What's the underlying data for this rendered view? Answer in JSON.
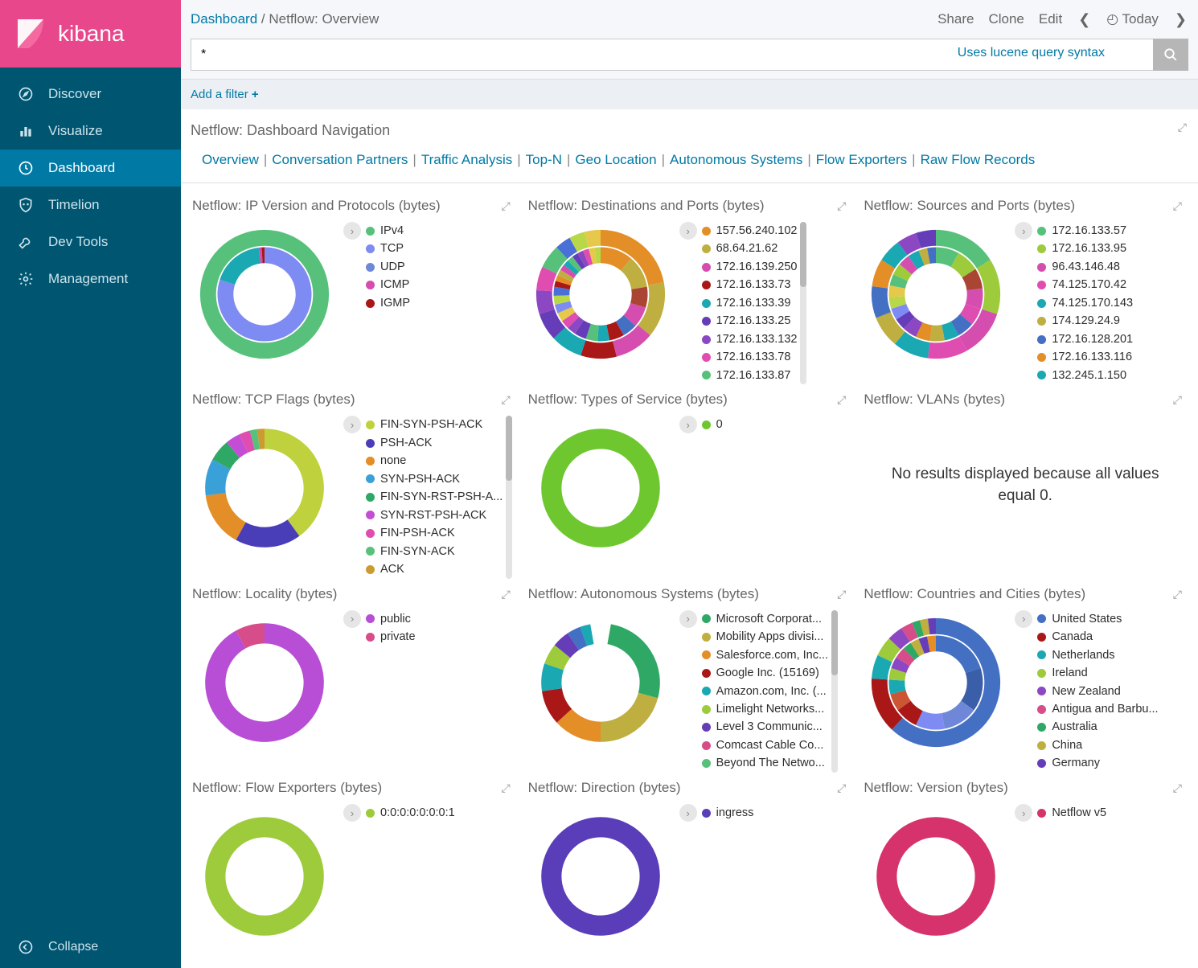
{
  "app_name": "kibana",
  "sidebar": {
    "items": [
      {
        "label": "Discover",
        "icon": "compass"
      },
      {
        "label": "Visualize",
        "icon": "bar-chart"
      },
      {
        "label": "Dashboard",
        "icon": "clock",
        "active": true
      },
      {
        "label": "Timelion",
        "icon": "shield"
      },
      {
        "label": "Dev Tools",
        "icon": "wrench"
      },
      {
        "label": "Management",
        "icon": "gear"
      }
    ],
    "collapse_label": "Collapse"
  },
  "topbar": {
    "breadcrumb_root": "Dashboard",
    "breadcrumb_current": "Netflow: Overview",
    "actions": {
      "share": "Share",
      "clone": "Clone",
      "edit": "Edit",
      "time": "Today"
    },
    "search_value": "*",
    "search_hint": "Uses lucene query syntax",
    "add_filter": "Add a filter"
  },
  "nav_panel": {
    "title": "Netflow: Dashboard Navigation",
    "links": [
      "Overview",
      "Conversation Partners",
      "Traffic Analysis",
      "Top-N",
      "Geo Location",
      "Autonomous Systems",
      "Flow Exporters",
      "Raw Flow Records"
    ]
  },
  "panels": {
    "ip_version": {
      "title": "Netflow: IP Version and Protocols (bytes)",
      "type": "donut-2ring",
      "legend": [
        {
          "label": "IPv4",
          "color": "#57c17b"
        },
        {
          "label": "TCP",
          "color": "#7d8bf2"
        },
        {
          "label": "UDP",
          "color": "#6f87d8"
        },
        {
          "label": "ICMP",
          "color": "#d64db0"
        },
        {
          "label": "IGMP",
          "color": "#aa1717"
        }
      ],
      "outer": [
        {
          "value": 100,
          "color": "#57c17b"
        }
      ],
      "inner": [
        {
          "value": 80,
          "color": "#7d8bf2"
        },
        {
          "value": 18,
          "color": "#1aa8b3"
        },
        {
          "value": 1,
          "color": "#d64db0"
        },
        {
          "value": 1,
          "color": "#aa1717"
        }
      ]
    },
    "dest_ports": {
      "title": "Netflow: Destinations and Ports (bytes)",
      "type": "donut-2ring",
      "scrollbar": true,
      "legend": [
        {
          "label": "157.56.240.102",
          "color": "#e38e27"
        },
        {
          "label": "68.64.21.62",
          "color": "#bfaf40"
        },
        {
          "label": "172.16.139.250",
          "color": "#d64db0"
        },
        {
          "label": "172.16.133.73",
          "color": "#aa1717"
        },
        {
          "label": "172.16.133.39",
          "color": "#1aa8b3"
        },
        {
          "label": "172.16.133.25",
          "color": "#663db8"
        },
        {
          "label": "172.16.133.132",
          "color": "#8c47c2"
        },
        {
          "label": "172.16.133.78",
          "color": "#e04db0"
        },
        {
          "label": "172.16.133.87",
          "color": "#57c17b"
        }
      ],
      "outer": [
        {
          "value": 22,
          "color": "#e38e27"
        },
        {
          "value": 14,
          "color": "#bfaf40"
        },
        {
          "value": 10,
          "color": "#d64db0"
        },
        {
          "value": 9,
          "color": "#aa1717"
        },
        {
          "value": 8,
          "color": "#1aa8b3"
        },
        {
          "value": 7,
          "color": "#663db8"
        },
        {
          "value": 6,
          "color": "#8c47c2"
        },
        {
          "value": 6,
          "color": "#e04db0"
        },
        {
          "value": 6,
          "color": "#57c17b"
        },
        {
          "value": 4,
          "color": "#4a6fd6"
        },
        {
          "value": 4,
          "color": "#b8d84a"
        },
        {
          "value": 4,
          "color": "#e6c84a"
        }
      ],
      "inner": [
        {
          "value": 11,
          "color": "#e38e27"
        },
        {
          "value": 11,
          "color": "#bfaf40"
        },
        {
          "value": 7,
          "color": "#aa4433"
        },
        {
          "value": 7,
          "color": "#d64db0"
        },
        {
          "value": 5,
          "color": "#4470c4"
        },
        {
          "value": 5,
          "color": "#aa1717"
        },
        {
          "value": 4,
          "color": "#1aa8b3"
        },
        {
          "value": 4,
          "color": "#57c17b"
        },
        {
          "value": 4,
          "color": "#663db8"
        },
        {
          "value": 3,
          "color": "#8c47c2"
        },
        {
          "value": 3,
          "color": "#e04db0"
        },
        {
          "value": 3,
          "color": "#e6c84a"
        },
        {
          "value": 3,
          "color": "#7d8bf2"
        },
        {
          "value": 3,
          "color": "#b8d84a"
        },
        {
          "value": 3,
          "color": "#4a6fd6"
        },
        {
          "value": 2,
          "color": "#aa1717"
        },
        {
          "value": 2,
          "color": "#e38e27"
        },
        {
          "value": 2,
          "color": "#bfaf40"
        },
        {
          "value": 2,
          "color": "#d64db0"
        },
        {
          "value": 2,
          "color": "#1aa8b3"
        },
        {
          "value": 2,
          "color": "#57c17b"
        },
        {
          "value": 2,
          "color": "#663db8"
        },
        {
          "value": 2,
          "color": "#8c47c2"
        },
        {
          "value": 2,
          "color": "#e04db0"
        },
        {
          "value": 2,
          "color": "#e6c84a"
        },
        {
          "value": 2,
          "color": "#b8d84a"
        }
      ]
    },
    "src_ports": {
      "title": "Netflow: Sources and Ports (bytes)",
      "type": "donut-2ring",
      "legend": [
        {
          "label": "172.16.133.57",
          "color": "#57c17b"
        },
        {
          "label": "172.16.133.95",
          "color": "#9dcb3c"
        },
        {
          "label": "96.43.146.48",
          "color": "#d64db0"
        },
        {
          "label": "74.125.170.42",
          "color": "#e04db0"
        },
        {
          "label": "74.125.170.143",
          "color": "#1aa8b3"
        },
        {
          "label": "174.129.24.9",
          "color": "#bfaf40"
        },
        {
          "label": "172.16.128.201",
          "color": "#4470c4"
        },
        {
          "label": "172.16.133.116",
          "color": "#e38e27"
        },
        {
          "label": "132.245.1.150",
          "color": "#1aa8b3"
        }
      ],
      "outer": [
        {
          "value": 16,
          "color": "#57c17b"
        },
        {
          "value": 14,
          "color": "#9dcb3c"
        },
        {
          "value": 12,
          "color": "#d64db0"
        },
        {
          "value": 10,
          "color": "#e04db0"
        },
        {
          "value": 9,
          "color": "#1aa8b3"
        },
        {
          "value": 8,
          "color": "#bfaf40"
        },
        {
          "value": 8,
          "color": "#4470c4"
        },
        {
          "value": 7,
          "color": "#e38e27"
        },
        {
          "value": 6,
          "color": "#1aa8b3"
        },
        {
          "value": 5,
          "color": "#8c47c2"
        },
        {
          "value": 5,
          "color": "#663db8"
        }
      ],
      "inner": [
        {
          "value": 8,
          "color": "#57c17b"
        },
        {
          "value": 8,
          "color": "#9dcb3c"
        },
        {
          "value": 7,
          "color": "#aa4433"
        },
        {
          "value": 7,
          "color": "#d64db0"
        },
        {
          "value": 6,
          "color": "#e04db0"
        },
        {
          "value": 6,
          "color": "#4470c4"
        },
        {
          "value": 5,
          "color": "#1aa8b3"
        },
        {
          "value": 5,
          "color": "#bfaf40"
        },
        {
          "value": 5,
          "color": "#e38e27"
        },
        {
          "value": 5,
          "color": "#8c47c2"
        },
        {
          "value": 4,
          "color": "#663db8"
        },
        {
          "value": 4,
          "color": "#7d8bf2"
        },
        {
          "value": 4,
          "color": "#b8d84a"
        },
        {
          "value": 4,
          "color": "#e6c84a"
        },
        {
          "value": 4,
          "color": "#57c17b"
        },
        {
          "value": 4,
          "color": "#9dcb3c"
        },
        {
          "value": 4,
          "color": "#d64db0"
        },
        {
          "value": 4,
          "color": "#1aa8b3"
        },
        {
          "value": 3,
          "color": "#bfaf40"
        },
        {
          "value": 3,
          "color": "#4470c4"
        }
      ]
    },
    "tcp_flags": {
      "title": "Netflow: TCP Flags (bytes)",
      "type": "donut-1ring",
      "scrollbar": true,
      "legend": [
        {
          "label": "FIN-SYN-PSH-ACK",
          "color": "#bfd13c"
        },
        {
          "label": "PSH-ACK",
          "color": "#4a3db8"
        },
        {
          "label": "none",
          "color": "#e38e27"
        },
        {
          "label": "SYN-PSH-ACK",
          "color": "#3aa0d8"
        },
        {
          "label": "FIN-SYN-RST-PSH-A...",
          "color": "#2fa866"
        },
        {
          "label": "SYN-RST-PSH-ACK",
          "color": "#c44dd6"
        },
        {
          "label": "FIN-PSH-ACK",
          "color": "#e04db0"
        },
        {
          "label": "FIN-SYN-ACK",
          "color": "#57c17b"
        },
        {
          "label": "ACK",
          "color": "#cc9a33"
        }
      ],
      "ring": [
        {
          "value": 40,
          "color": "#bfd13c"
        },
        {
          "value": 18,
          "color": "#4a3db8"
        },
        {
          "value": 15,
          "color": "#e38e27"
        },
        {
          "value": 10,
          "color": "#3aa0d8"
        },
        {
          "value": 6,
          "color": "#2fa866"
        },
        {
          "value": 4,
          "color": "#c44dd6"
        },
        {
          "value": 3,
          "color": "#e04db0"
        },
        {
          "value": 2,
          "color": "#57c17b"
        },
        {
          "value": 2,
          "color": "#cc9a33"
        }
      ]
    },
    "tos": {
      "title": "Netflow: Types of Service (bytes)",
      "type": "donut-1ring",
      "legend": [
        {
          "label": "0",
          "color": "#6ec72f"
        }
      ],
      "ring": [
        {
          "value": 100,
          "color": "#6ec72f"
        }
      ]
    },
    "vlans": {
      "title": "Netflow: VLANs (bytes)",
      "type": "message",
      "message": "No results displayed because all values equal 0."
    },
    "locality": {
      "title": "Netflow: Locality (bytes)",
      "type": "donut-1ring",
      "legend": [
        {
          "label": "public",
          "color": "#b84dd6"
        },
        {
          "label": "private",
          "color": "#d64d8a"
        }
      ],
      "ring": [
        {
          "value": 92,
          "color": "#b84dd6"
        },
        {
          "value": 8,
          "color": "#d64d8a"
        }
      ]
    },
    "autonomous": {
      "title": "Netflow: Autonomous Systems (bytes)",
      "type": "donut-1ring",
      "scrollbar": true,
      "legend": [
        {
          "label": "Microsoft Corporat...",
          "color": "#2fa866"
        },
        {
          "label": "Mobility Apps divisi...",
          "color": "#bfaf40"
        },
        {
          "label": "Salesforce.com, Inc...",
          "color": "#e38e27"
        },
        {
          "label": "Google Inc. (15169)",
          "color": "#aa1717"
        },
        {
          "label": "Amazon.com, Inc. (...",
          "color": "#1aa8b3"
        },
        {
          "label": "Limelight Networks...",
          "color": "#9dcb3c"
        },
        {
          "label": "Level 3 Communic...",
          "color": "#663db8"
        },
        {
          "label": "Comcast Cable Co...",
          "color": "#d64d8a"
        },
        {
          "label": "Beyond The Netwo...",
          "color": "#57c17b"
        }
      ],
      "ring": [
        {
          "value": 28,
          "color": "#2fa866"
        },
        {
          "value": 22,
          "color": "#bfaf40"
        },
        {
          "value": 14,
          "color": "#e38e27"
        },
        {
          "value": 10,
          "color": "#aa1717"
        },
        {
          "value": 8,
          "color": "#1aa8b3"
        },
        {
          "value": 6,
          "color": "#9dcb3c"
        },
        {
          "value": 5,
          "color": "#663db8"
        },
        {
          "value": 4,
          "color": "#4470c4"
        },
        {
          "value": 3,
          "color": "#1aa8b3"
        }
      ],
      "ring_gap": 10
    },
    "countries": {
      "title": "Netflow: Countries and Cities (bytes)",
      "type": "donut-2ring",
      "legend": [
        {
          "label": "United States",
          "color": "#4470c4"
        },
        {
          "label": "Canada",
          "color": "#aa1717"
        },
        {
          "label": "Netherlands",
          "color": "#1aa8b3"
        },
        {
          "label": "Ireland",
          "color": "#9dcb3c"
        },
        {
          "label": "New Zealand",
          "color": "#8c47c2"
        },
        {
          "label": "Antigua and Barbu...",
          "color": "#d64d8a"
        },
        {
          "label": "Australia",
          "color": "#2fa866"
        },
        {
          "label": "China",
          "color": "#bfaf40"
        },
        {
          "label": "Germany",
          "color": "#663db8"
        }
      ],
      "outer": [
        {
          "value": 62,
          "color": "#4470c4"
        },
        {
          "value": 14,
          "color": "#aa1717"
        },
        {
          "value": 6,
          "color": "#1aa8b3"
        },
        {
          "value": 5,
          "color": "#9dcb3c"
        },
        {
          "value": 4,
          "color": "#8c47c2"
        },
        {
          "value": 3,
          "color": "#d64d8a"
        },
        {
          "value": 2,
          "color": "#2fa866"
        },
        {
          "value": 2,
          "color": "#bfaf40"
        },
        {
          "value": 2,
          "color": "#663db8"
        }
      ],
      "inner": [
        {
          "value": 20,
          "color": "#4470c4"
        },
        {
          "value": 15,
          "color": "#3a5fa8"
        },
        {
          "value": 12,
          "color": "#6f87d8"
        },
        {
          "value": 10,
          "color": "#7d8bf2"
        },
        {
          "value": 8,
          "color": "#aa1717"
        },
        {
          "value": 6,
          "color": "#cc5533"
        },
        {
          "value": 5,
          "color": "#1aa8b3"
        },
        {
          "value": 4,
          "color": "#9dcb3c"
        },
        {
          "value": 4,
          "color": "#8c47c2"
        },
        {
          "value": 4,
          "color": "#d64d8a"
        },
        {
          "value": 3,
          "color": "#2fa866"
        },
        {
          "value": 3,
          "color": "#bfaf40"
        },
        {
          "value": 3,
          "color": "#663db8"
        },
        {
          "value": 3,
          "color": "#e38e27"
        }
      ]
    },
    "flow_exp": {
      "title": "Netflow: Flow Exporters (bytes)",
      "type": "donut-1ring",
      "legend": [
        {
          "label": "0:0:0:0:0:0:0:1",
          "color": "#9dcb3c"
        }
      ],
      "ring": [
        {
          "value": 100,
          "color": "#9dcb3c"
        }
      ]
    },
    "direction": {
      "title": "Netflow: Direction (bytes)",
      "type": "donut-1ring",
      "legend": [
        {
          "label": "ingress",
          "color": "#5a3db8"
        }
      ],
      "ring": [
        {
          "value": 100,
          "color": "#5a3db8"
        }
      ]
    },
    "version": {
      "title": "Netflow: Version (bytes)",
      "type": "donut-1ring",
      "legend": [
        {
          "label": "Netflow v5",
          "color": "#d6336c"
        }
      ],
      "ring": [
        {
          "value": 100,
          "color": "#d6336c"
        }
      ]
    }
  },
  "panel_order": [
    "ip_version",
    "dest_ports",
    "src_ports",
    "tcp_flags",
    "tos",
    "vlans",
    "locality",
    "autonomous",
    "countries",
    "flow_exp",
    "direction",
    "version"
  ]
}
